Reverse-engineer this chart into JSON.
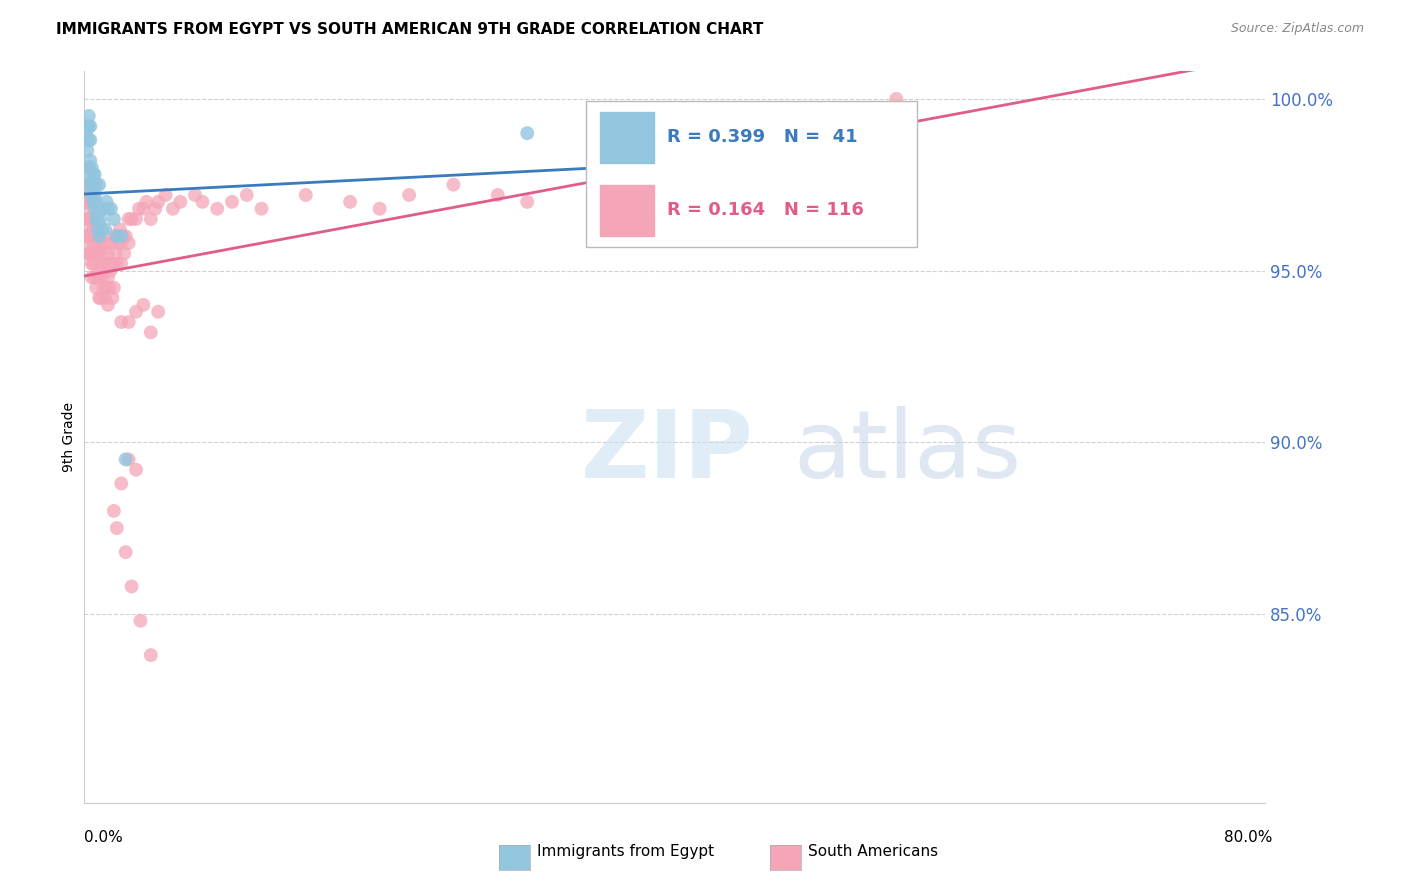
{
  "title": "IMMIGRANTS FROM EGYPT VS SOUTH AMERICAN 9TH GRADE CORRELATION CHART",
  "source": "Source: ZipAtlas.com",
  "ylabel": "9th Grade",
  "y_ticks": [
    85.0,
    90.0,
    95.0,
    100.0
  ],
  "x_lim": [
    0.0,
    0.8
  ],
  "y_lim": [
    0.795,
    1.008
  ],
  "legend_blue": {
    "R": "0.399",
    "N": " 41"
  },
  "legend_pink": {
    "R": "0.164",
    "N": "116"
  },
  "legend_labels": [
    "Immigrants from Egypt",
    "South Americans"
  ],
  "blue_color": "#92c5de",
  "pink_color": "#f4a6b8",
  "blue_line_color": "#3a7bbf",
  "pink_line_color": "#e05c8a",
  "blue_scatter_x": [
    0.001,
    0.002,
    0.002,
    0.002,
    0.003,
    0.003,
    0.003,
    0.003,
    0.004,
    0.004,
    0.004,
    0.004,
    0.005,
    0.005,
    0.005,
    0.006,
    0.006,
    0.006,
    0.007,
    0.007,
    0.007,
    0.008,
    0.008,
    0.008,
    0.009,
    0.009,
    0.01,
    0.01,
    0.01,
    0.011,
    0.012,
    0.013,
    0.014,
    0.015,
    0.016,
    0.018,
    0.02,
    0.022,
    0.025,
    0.028,
    0.3
  ],
  "blue_scatter_y": [
    0.99,
    0.975,
    0.985,
    0.992,
    0.98,
    0.988,
    0.992,
    0.995,
    0.978,
    0.988,
    0.992,
    0.982,
    0.972,
    0.975,
    0.98,
    0.97,
    0.975,
    0.978,
    0.968,
    0.972,
    0.978,
    0.965,
    0.97,
    0.975,
    0.962,
    0.965,
    0.96,
    0.968,
    0.975,
    0.965,
    0.962,
    0.968,
    0.962,
    0.97,
    0.968,
    0.968,
    0.965,
    0.96,
    0.96,
    0.895,
    0.99
  ],
  "pink_scatter_x": [
    0.001,
    0.001,
    0.001,
    0.002,
    0.002,
    0.002,
    0.002,
    0.002,
    0.002,
    0.003,
    0.003,
    0.003,
    0.003,
    0.003,
    0.004,
    0.004,
    0.004,
    0.004,
    0.005,
    0.005,
    0.005,
    0.005,
    0.005,
    0.006,
    0.006,
    0.006,
    0.007,
    0.007,
    0.007,
    0.008,
    0.008,
    0.008,
    0.009,
    0.009,
    0.01,
    0.01,
    0.01,
    0.01,
    0.011,
    0.011,
    0.011,
    0.012,
    0.012,
    0.013,
    0.013,
    0.014,
    0.014,
    0.015,
    0.015,
    0.015,
    0.016,
    0.016,
    0.016,
    0.017,
    0.017,
    0.018,
    0.018,
    0.019,
    0.02,
    0.02,
    0.02,
    0.021,
    0.022,
    0.022,
    0.023,
    0.024,
    0.025,
    0.025,
    0.026,
    0.027,
    0.028,
    0.03,
    0.03,
    0.032,
    0.035,
    0.037,
    0.04,
    0.042,
    0.045,
    0.048,
    0.05,
    0.055,
    0.06,
    0.065,
    0.075,
    0.08,
    0.09,
    0.1,
    0.11,
    0.12,
    0.15,
    0.18,
    0.2,
    0.22,
    0.25,
    0.28,
    0.3,
    0.35,
    0.4,
    0.45,
    0.025,
    0.03,
    0.035,
    0.04,
    0.045,
    0.05,
    0.03,
    0.035,
    0.025,
    0.55,
    0.02,
    0.022,
    0.028,
    0.032,
    0.038,
    0.045
  ],
  "pink_scatter_y": [
    0.975,
    0.97,
    0.965,
    0.98,
    0.975,
    0.97,
    0.965,
    0.96,
    0.955,
    0.975,
    0.97,
    0.965,
    0.96,
    0.955,
    0.972,
    0.965,
    0.96,
    0.955,
    0.968,
    0.962,
    0.958,
    0.952,
    0.948,
    0.962,
    0.958,
    0.952,
    0.96,
    0.955,
    0.948,
    0.958,
    0.952,
    0.945,
    0.955,
    0.948,
    0.96,
    0.955,
    0.948,
    0.942,
    0.958,
    0.95,
    0.942,
    0.955,
    0.948,
    0.952,
    0.945,
    0.95,
    0.942,
    0.958,
    0.952,
    0.945,
    0.955,
    0.948,
    0.94,
    0.952,
    0.945,
    0.958,
    0.95,
    0.942,
    0.96,
    0.952,
    0.945,
    0.955,
    0.96,
    0.952,
    0.958,
    0.962,
    0.958,
    0.952,
    0.96,
    0.955,
    0.96,
    0.965,
    0.958,
    0.965,
    0.965,
    0.968,
    0.968,
    0.97,
    0.965,
    0.968,
    0.97,
    0.972,
    0.968,
    0.97,
    0.972,
    0.97,
    0.968,
    0.97,
    0.972,
    0.968,
    0.972,
    0.97,
    0.968,
    0.972,
    0.975,
    0.972,
    0.97,
    0.975,
    0.978,
    0.978,
    0.935,
    0.935,
    0.938,
    0.94,
    0.932,
    0.938,
    0.895,
    0.892,
    0.888,
    1.0,
    0.88,
    0.875,
    0.868,
    0.858,
    0.848,
    0.838
  ]
}
